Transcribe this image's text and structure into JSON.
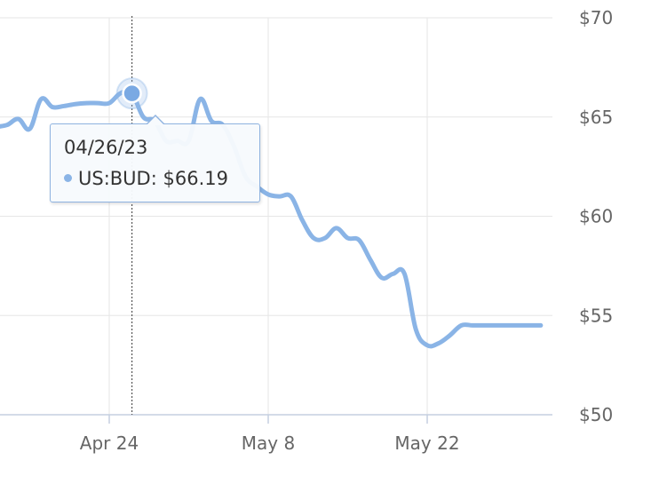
{
  "chart_data": {
    "type": "line",
    "x_ticks": [
      {
        "label": "Apr 24",
        "day": 0
      },
      {
        "label": "May 8",
        "day": 14
      },
      {
        "label": "May 22",
        "day": 28
      }
    ],
    "y_ticks": [
      {
        "label": "$50",
        "value": 50
      },
      {
        "label": "$55",
        "value": 55
      },
      {
        "label": "$60",
        "value": 60
      },
      {
        "label": "$65",
        "value": 65
      },
      {
        "label": "$70",
        "value": 70
      }
    ],
    "ylim": [
      50,
      70
    ],
    "xlim": [
      "2023-04-14",
      "2023-06-01"
    ],
    "grid": true,
    "series": [
      {
        "color": "#8ab4e6",
        "x": [
          "2023-04-14",
          "2023-04-15",
          "2023-04-16",
          "2023-04-17",
          "2023-04-18",
          "2023-04-19",
          "2023-04-20",
          "2023-04-21",
          "2023-04-22",
          "2023-04-23",
          "2023-04-24",
          "2023-04-25",
          "2023-04-26",
          "2023-04-27",
          "2023-04-28",
          "2023-04-29",
          "2023-04-30",
          "2023-05-01",
          "2023-05-02",
          "2023-05-03",
          "2023-05-04",
          "2023-05-05",
          "2023-05-06",
          "2023-05-07",
          "2023-05-08",
          "2023-05-09",
          "2023-05-10",
          "2023-05-11",
          "2023-05-12",
          "2023-05-13",
          "2023-05-14",
          "2023-05-15",
          "2023-05-16",
          "2023-05-17",
          "2023-05-18",
          "2023-05-19",
          "2023-05-20",
          "2023-05-21",
          "2023-05-22",
          "2023-05-23",
          "2023-05-24",
          "2023-05-25",
          "2023-05-26",
          "2023-05-27",
          "2023-05-28",
          "2023-05-29",
          "2023-05-30",
          "2023-05-31",
          "2023-06-01"
        ],
        "values": [
          64.5,
          64.6,
          64.9,
          64.4,
          65.9,
          65.5,
          65.55,
          65.65,
          65.7,
          65.7,
          65.7,
          66.2,
          66.19,
          65.0,
          64.8,
          63.8,
          63.8,
          63.8,
          65.9,
          64.8,
          64.6,
          63.5,
          62.0,
          61.5,
          61.1,
          61.0,
          61.0,
          59.8,
          58.9,
          58.9,
          59.4,
          58.9,
          58.8,
          57.8,
          56.9,
          57.1,
          57.1,
          54.3,
          53.5,
          53.6,
          54.0,
          54.5,
          54.5,
          54.5,
          54.5,
          54.5,
          54.5,
          54.5,
          54.5
        ]
      }
    ],
    "highlight": {
      "x": "2023-04-26",
      "date_label": "04/26/23",
      "series_label": "US:BUD",
      "value_label": "$66.19",
      "value": 66.19
    }
  }
}
